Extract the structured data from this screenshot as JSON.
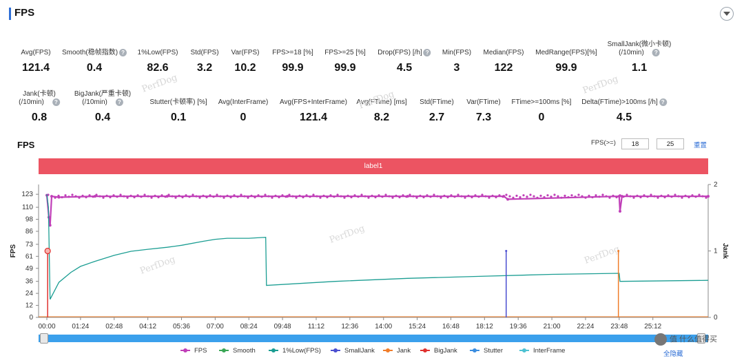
{
  "header": {
    "title": "FPS",
    "collapse_icon": "chevron-down-icon"
  },
  "stats": [
    {
      "label": "Avg(FPS)",
      "value": "121.4",
      "help": false
    },
    {
      "label": "Smooth(稳帧指数)",
      "value": "0.4",
      "help": true
    },
    {
      "label": "1%Low(FPS)",
      "value": "82.6",
      "help": false
    },
    {
      "label": "Std(FPS)",
      "value": "3.2",
      "help": false
    },
    {
      "label": "Var(FPS)",
      "value": "10.2",
      "help": false
    },
    {
      "label": "FPS>=18 [%]",
      "value": "99.9",
      "help": false
    },
    {
      "label": "FPS>=25 [%]",
      "value": "99.9",
      "help": false
    },
    {
      "label": "Drop(FPS) [/h]",
      "value": "4.5",
      "help": true
    },
    {
      "label": "Min(FPS)",
      "value": "3",
      "help": false
    },
    {
      "label": "Median(FPS)",
      "value": "122",
      "help": false
    },
    {
      "label": "MedRange(FPS)[%]",
      "value": "99.9",
      "help": false
    },
    {
      "label": "SmallJank(微小卡顿)",
      "label2": "(/10min)",
      "value": "1.1",
      "help": true
    },
    {
      "label": "Jank(卡顿)",
      "label2": "(/10min)",
      "value": "0.8",
      "help": true
    },
    {
      "label": "BigJank(严重卡顿)",
      "label2": "(/10min)",
      "value": "0.4",
      "help": true
    },
    {
      "label": "Stutter(卡顿率) [%]",
      "value": "0.1",
      "help": false
    },
    {
      "label": "Avg(InterFrame)",
      "value": "0",
      "help": false
    },
    {
      "label": "Avg(FPS+InterFrame)",
      "value": "121.4",
      "help": false
    },
    {
      "label": "Avg(FTime) [ms]",
      "value": "8.2",
      "help": false
    },
    {
      "label": "Std(FTime)",
      "value": "2.7",
      "help": false
    },
    {
      "label": "Var(FTime)",
      "value": "7.3",
      "help": false
    },
    {
      "label": "FTime>=100ms [%]",
      "value": "0",
      "help": false
    },
    {
      "label": "Delta(FTime)>100ms [/h]",
      "value": "4.5",
      "help": true
    }
  ],
  "chart_header": {
    "title": "FPS",
    "filter_label": "FPS(>=)",
    "filter_values": [
      "18",
      "25"
    ],
    "reset_label": "重置"
  },
  "band_label": "label1",
  "watermark": "PerfDog",
  "corner_watermark": "值 什么值得买",
  "hide_all_label": "全隐藏",
  "colors": {
    "fps": "#c03fb8",
    "smooth": "#3aa655",
    "low1": "#1a9d92",
    "smalljank": "#4b4fd0",
    "jank": "#f07d2a",
    "bigjank": "#e0302e",
    "stutter": "#3a8de0",
    "interframe": "#4ec2d2",
    "band": "#ec5462",
    "scroll": "#3ba0ec"
  },
  "chart_data": {
    "type": "line",
    "title": "",
    "ylabel": "FPS",
    "y2label": "Jank",
    "x_unit": "mm:ss (approx. 27:30 total)",
    "x_ticks": [
      "00:00",
      "01:24",
      "02:48",
      "04:12",
      "05:36",
      "07:00",
      "08:24",
      "09:48",
      "11:12",
      "12:36",
      "14:00",
      "15:24",
      "16:48",
      "18:12",
      "19:36",
      "21:00",
      "22:24",
      "23:48",
      "25:12"
    ],
    "y_ticks": [
      0,
      12,
      24,
      36,
      49,
      61,
      73,
      86,
      98,
      110,
      123
    ],
    "y_range": [
      0,
      130
    ],
    "y2_ticks": [
      0,
      1,
      2
    ],
    "y2_range": [
      0,
      2
    ],
    "series": [
      {
        "name": "FPS",
        "axis": "left",
        "style": "line-markers",
        "points": [
          [
            "00:00",
            122
          ],
          [
            "00:05",
            100
          ],
          [
            "00:08",
            92
          ],
          [
            "00:12",
            121
          ],
          [
            "00:30",
            120
          ],
          [
            "02:00",
            121
          ],
          [
            "05:00",
            121
          ],
          [
            "10:00",
            121
          ],
          [
            "15:00",
            121
          ],
          [
            "19:00",
            121
          ],
          [
            "19:10",
            118
          ],
          [
            "23:48",
            121
          ],
          [
            "23:50",
            106
          ],
          [
            "23:55",
            121
          ],
          [
            "27:30",
            121
          ]
        ]
      },
      {
        "name": "1%Low(FPS)",
        "axis": "left",
        "style": "line",
        "points": [
          [
            "00:00",
            123
          ],
          [
            "00:04",
            110
          ],
          [
            "00:08",
            18
          ],
          [
            "00:30",
            35
          ],
          [
            "01:00",
            45
          ],
          [
            "01:24",
            51
          ],
          [
            "02:00",
            56
          ],
          [
            "02:48",
            62
          ],
          [
            "03:30",
            66
          ],
          [
            "04:12",
            68
          ],
          [
            "05:00",
            70
          ],
          [
            "05:36",
            72
          ],
          [
            "06:30",
            76
          ],
          [
            "07:00",
            78
          ],
          [
            "07:30",
            79
          ],
          [
            "08:24",
            79
          ],
          [
            "09:06",
            80
          ],
          [
            "09:08",
            32
          ],
          [
            "12:00",
            36
          ],
          [
            "15:00",
            39
          ],
          [
            "18:00",
            41
          ],
          [
            "21:00",
            43
          ],
          [
            "23:48",
            44
          ],
          [
            "23:50",
            36
          ],
          [
            "27:30",
            37
          ]
        ]
      },
      {
        "name": "SmallJank",
        "axis": "right",
        "style": "event",
        "events": [
          [
            "19:06",
            1
          ]
        ]
      },
      {
        "name": "Jank",
        "axis": "right",
        "style": "event",
        "events": [
          [
            "23:46",
            1
          ]
        ]
      },
      {
        "name": "BigJank",
        "axis": "right",
        "style": "event",
        "events": [
          [
            "00:02",
            1
          ]
        ]
      },
      {
        "name": "Smooth",
        "axis": "right",
        "points": []
      },
      {
        "name": "Stutter",
        "axis": "right",
        "points": []
      },
      {
        "name": "InterFrame",
        "axis": "left",
        "points": []
      }
    ],
    "legend": [
      "FPS",
      "Smooth",
      "1%Low(FPS)",
      "SmallJank",
      "Jank",
      "BigJank",
      "Stutter",
      "InterFrame"
    ],
    "legend_position": "bottom",
    "grid": false
  }
}
